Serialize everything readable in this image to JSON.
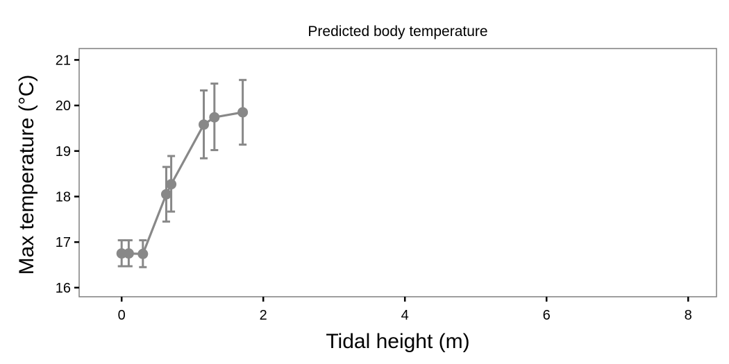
{
  "chart_data": {
    "type": "line",
    "title": "Predicted body temperature",
    "xlabel": "Tidal height (m)",
    "ylabel": "Max temperature (°C)",
    "xlim": [
      -0.6,
      8.4
    ],
    "ylim": [
      15.8,
      21.25
    ],
    "x_ticks": [
      0,
      2,
      4,
      6,
      8
    ],
    "y_ticks": [
      16,
      17,
      18,
      19,
      20,
      21
    ],
    "x_tick_labels": [
      "0",
      "2",
      "4",
      "6",
      "8"
    ],
    "y_tick_labels": [
      "16",
      "17",
      "18",
      "19",
      "20",
      "21"
    ],
    "grid": false,
    "series_color": "#888888",
    "series": [
      {
        "x": [
          0.0,
          0.1,
          0.3,
          0.63,
          0.7,
          1.16,
          1.31,
          1.71
        ],
        "y": [
          16.75,
          16.75,
          16.74,
          18.05,
          18.27,
          19.58,
          19.74,
          19.85
        ],
        "err_low": [
          16.47,
          16.47,
          16.45,
          17.45,
          17.67,
          18.84,
          19.02,
          19.14
        ],
        "err_high": [
          17.04,
          17.04,
          17.04,
          18.65,
          18.89,
          20.33,
          20.48,
          20.56
        ]
      }
    ]
  }
}
